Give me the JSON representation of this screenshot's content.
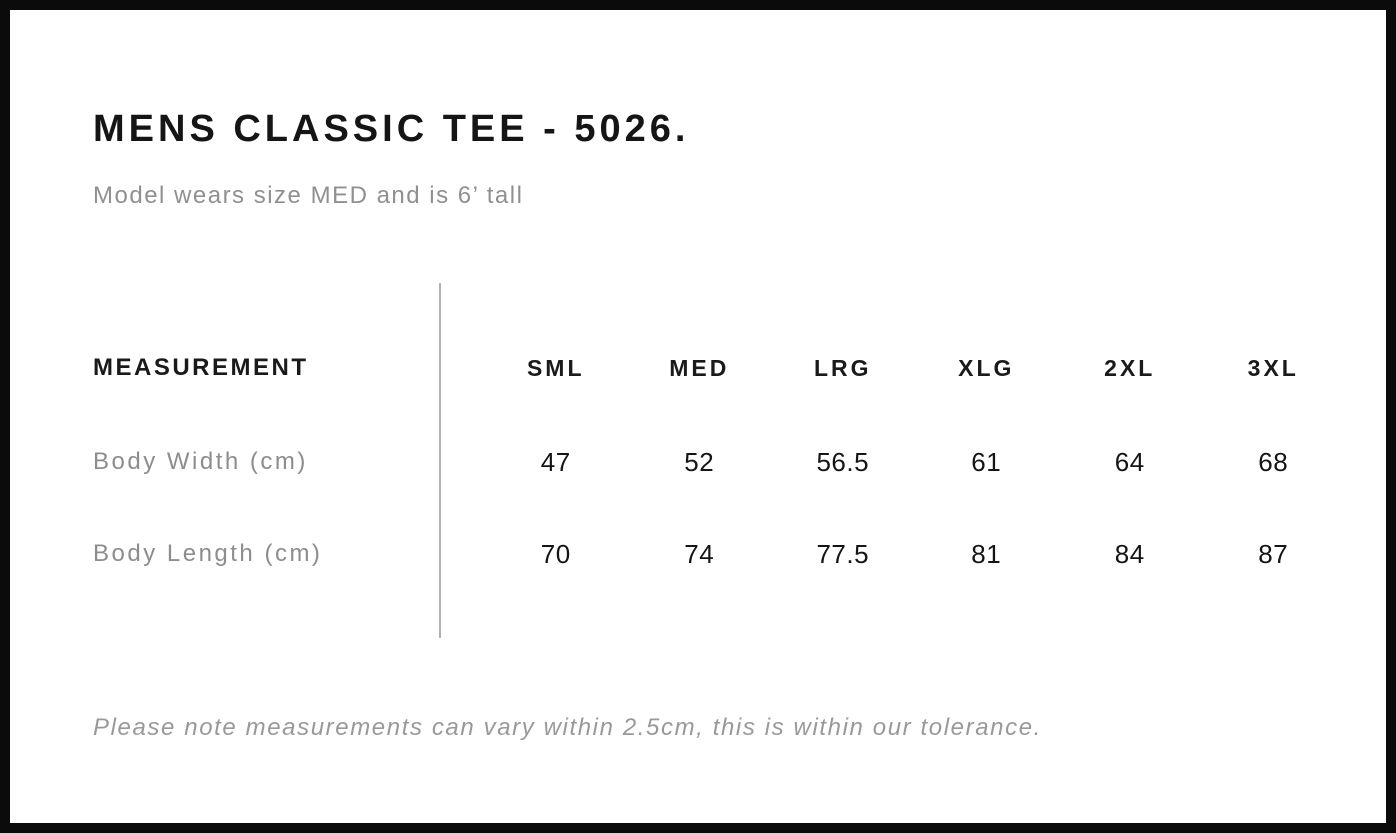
{
  "page": {
    "title": "MENS CLASSIC TEE - 5026.",
    "subtitle": "Model wears size MED and is 6’ tall",
    "note": "Please note measurements can vary within 2.5cm, this is within our tolerance."
  },
  "size_chart": {
    "measurement_header": "MEASUREMENT",
    "size_headers": [
      "SML",
      "MED",
      "LRG",
      "XLG",
      "2XL",
      "3XL"
    ],
    "rows": [
      {
        "label": "Body Width (cm)",
        "values": [
          "47",
          "52",
          "56.5",
          "61",
          "64",
          "68"
        ]
      },
      {
        "label": "Body Length (cm)",
        "values": [
          "70",
          "74",
          "77.5",
          "81",
          "84",
          "87"
        ]
      }
    ]
  },
  "colors": {
    "page_border": "#0b0b0b",
    "title_text": "#151515",
    "muted_text": "#909090",
    "divider": "#b2b2b2",
    "value_text": "#151515"
  }
}
